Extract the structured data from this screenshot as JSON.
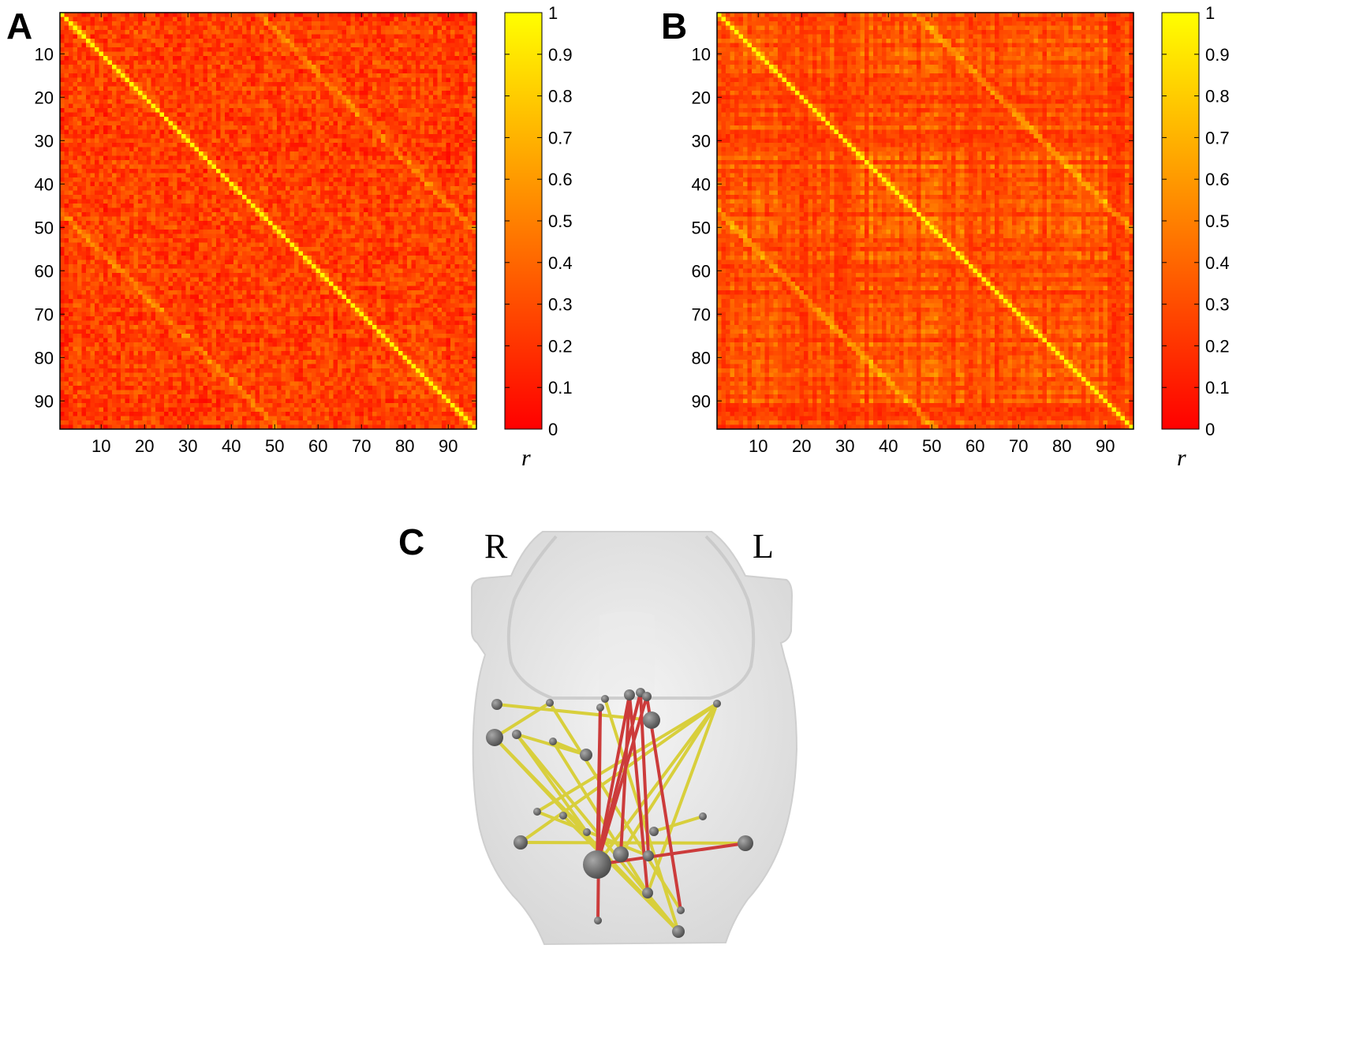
{
  "panels": {
    "a": {
      "letter": "A"
    },
    "b": {
      "letter": "B"
    },
    "c": {
      "letter": "C",
      "right_label": "R",
      "left_label": "L"
    }
  },
  "colors": {
    "colormap": [
      "#ff0000",
      "#ff8000",
      "#ffff00"
    ],
    "edge_yellow": "#d8cf3c",
    "edge_red": "#cc3b3b",
    "node": "#6a6a6a",
    "brain_surface": "#e6e6e6"
  },
  "chart_data": [
    {
      "type": "heatmap",
      "panel": "A",
      "n": 96,
      "x_ticks": [
        10,
        20,
        30,
        40,
        50,
        60,
        70,
        80,
        90
      ],
      "y_ticks": [
        10,
        20,
        30,
        40,
        50,
        60,
        70,
        80,
        90
      ],
      "xlim": [
        1,
        96
      ],
      "ylim": [
        1,
        96
      ],
      "value_range": [
        0,
        1
      ],
      "diagonal_value": 1,
      "off_diagonal_typical_range": [
        0.0,
        0.6
      ],
      "colorbar": {
        "ticks": [
          "0",
          "0.1",
          "0.2",
          "0.3",
          "0.4",
          "0.5",
          "0.6",
          "0.7",
          "0.8",
          "0.9",
          "1"
        ],
        "label": "r",
        "min": 0,
        "max": 1
      },
      "colormap": "autumn (red to yellow)"
    },
    {
      "type": "heatmap",
      "panel": "B",
      "n": 96,
      "x_ticks": [
        10,
        20,
        30,
        40,
        50,
        60,
        70,
        80,
        90
      ],
      "y_ticks": [
        10,
        20,
        30,
        40,
        50,
        60,
        70,
        80,
        90
      ],
      "xlim": [
        1,
        96
      ],
      "ylim": [
        1,
        96
      ],
      "value_range": [
        0,
        1
      ],
      "diagonal_value": 1,
      "off_diagonal_typical_range": [
        0.0,
        0.7
      ],
      "colorbar": {
        "ticks": [
          "0",
          "0.1",
          "0.2",
          "0.3",
          "0.4",
          "0.5",
          "0.6",
          "0.7",
          "0.8",
          "0.9",
          "1"
        ],
        "label": "r",
        "min": 0,
        "max": 1
      },
      "colormap": "autumn (red to yellow)"
    }
  ]
}
